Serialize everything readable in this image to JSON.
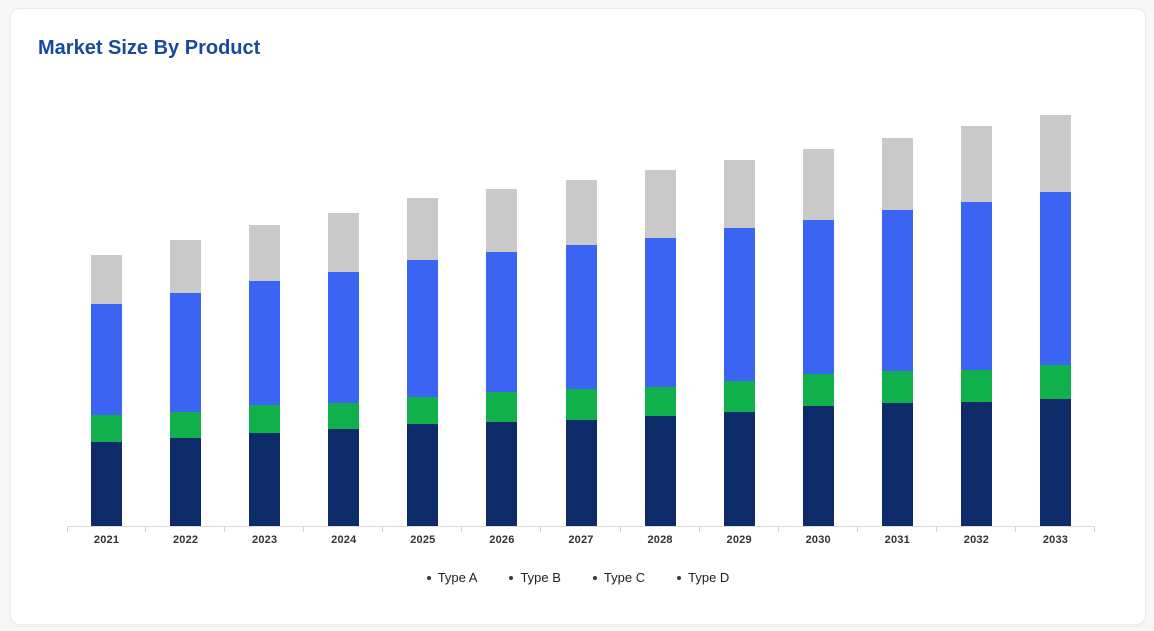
{
  "page": {
    "background": "#f7f7f8"
  },
  "card": {
    "title": "Market Size By Product",
    "title_color": "#164a9d",
    "background": "#ffffff"
  },
  "chart_data": {
    "type": "bar",
    "stacked": true,
    "title": "Market Size By Product",
    "xlabel": "",
    "ylabel": "",
    "grid": false,
    "y_axis_visible": false,
    "legend_position": "bottom",
    "value_unit": "relative-px",
    "categories": [
      "2021",
      "2022",
      "2023",
      "2024",
      "2025",
      "2026",
      "2027",
      "2028",
      "2029",
      "2030",
      "2031",
      "2032",
      "2033"
    ],
    "series": [
      {
        "name": "Type A",
        "color": "#0d2a69",
        "values": [
          84,
          88,
          93,
          97,
          102,
          104,
          106,
          110,
          114,
          120,
          123,
          124,
          127
        ]
      },
      {
        "name": "Type B",
        "color": "#10b04c",
        "values": [
          27,
          26,
          28,
          26,
          27,
          30,
          31,
          29,
          31,
          32,
          32,
          32,
          34
        ]
      },
      {
        "name": "Type C",
        "color": "#3b64f2",
        "values": [
          111,
          119,
          124,
          131,
          137,
          140,
          144,
          149,
          153,
          154,
          161,
          168,
          173
        ]
      },
      {
        "name": "Type D",
        "color": "#c9c9c9",
        "values": [
          49,
          53,
          56,
          59,
          62,
          63,
          65,
          68,
          68,
          71,
          72,
          76,
          77
        ]
      }
    ],
    "totals": [
      271,
      286,
      301,
      313,
      328,
      337,
      346,
      356,
      366,
      377,
      388,
      400,
      411
    ],
    "axis": {
      "line_color": "#d8d8d8",
      "tick_color": "#d4d4d4",
      "label_color": "#333333"
    },
    "legend_marker_color": "#3a3a3a"
  }
}
